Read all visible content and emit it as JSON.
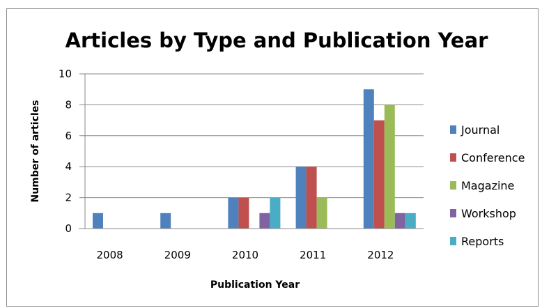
{
  "chart_data": {
    "type": "bar",
    "title": "Articles by Type and Publication Year",
    "xlabel": "Publication Year",
    "ylabel": "Number of articles",
    "categories": [
      "2008",
      "2009",
      "2010",
      "2011",
      "2012"
    ],
    "ylim": [
      0,
      10
    ],
    "yticks": [
      0,
      2,
      4,
      6,
      8,
      10
    ],
    "grid": true,
    "legend_position": "right",
    "series": [
      {
        "name": "Journal",
        "color": "#4f81bd",
        "values": [
          1,
          1,
          2,
          4,
          9
        ]
      },
      {
        "name": "Conference",
        "color": "#c0504d",
        "values": [
          0,
          0,
          2,
          4,
          7
        ]
      },
      {
        "name": "Magazine",
        "color": "#9bbb59",
        "values": [
          0,
          0,
          0,
          2,
          8
        ]
      },
      {
        "name": "Workshop",
        "color": "#8064a2",
        "values": [
          0,
          0,
          1,
          0,
          1
        ]
      },
      {
        "name": "Reports",
        "color": "#4bacc6",
        "values": [
          0,
          0,
          2,
          0,
          1
        ]
      }
    ]
  }
}
